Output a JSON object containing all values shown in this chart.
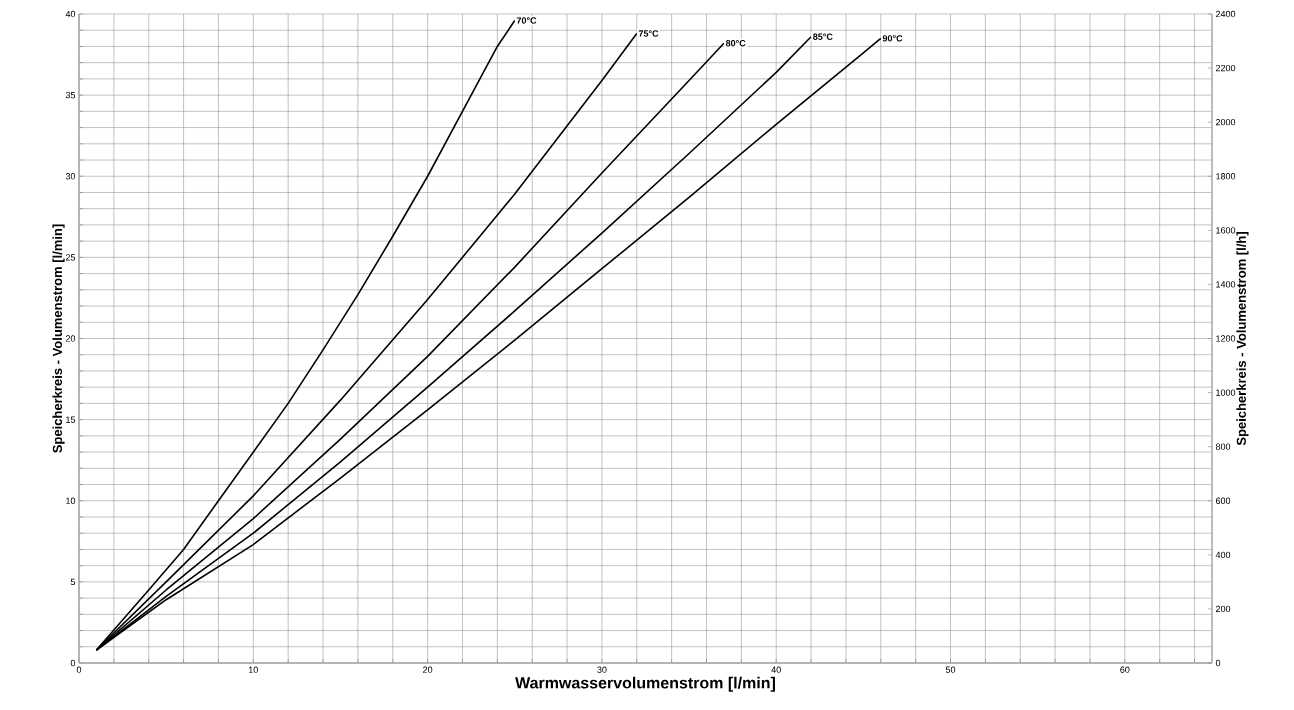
{
  "chart_data": {
    "type": "line",
    "xlabel": "Warmwasservolumenstrom [l/min]",
    "ylabel": "Speicherkreis - Volumenstrom [l/min]",
    "y2label": "Speicherkreis - Volumenstrom [l/h]",
    "xlim": [
      0,
      65
    ],
    "ylim": [
      0,
      40
    ],
    "y2lim": [
      0,
      2400
    ],
    "grid": true,
    "marker": "none",
    "line_style": "solid",
    "xticks": [
      0,
      {
        "value": 2,
        "label": null
      },
      {
        "value": 4,
        "label": null
      },
      {
        "value": 6,
        "label": null
      },
      {
        "value": 8,
        "label": null
      },
      10,
      {
        "value": 12,
        "label": null
      },
      {
        "value": 14,
        "label": null
      },
      {
        "value": 16,
        "label": null
      },
      {
        "value": 18,
        "label": null
      },
      20,
      {
        "value": 22,
        "label": null
      },
      {
        "value": 24,
        "label": null
      },
      {
        "value": 26,
        "label": null
      },
      {
        "value": 28,
        "label": null
      },
      30,
      {
        "value": 32,
        "label": null
      },
      {
        "value": 34,
        "label": null
      },
      {
        "value": 36,
        "label": null
      },
      {
        "value": 38,
        "label": null
      },
      40,
      {
        "value": 42,
        "label": null
      },
      {
        "value": 44,
        "label": null
      },
      {
        "value": 46,
        "label": null
      },
      {
        "value": 48,
        "label": null
      },
      50,
      {
        "value": 52,
        "label": null
      },
      {
        "value": 54,
        "label": null
      },
      {
        "value": 56,
        "label": null
      },
      {
        "value": 58,
        "label": null
      },
      60,
      {
        "value": 62,
        "label": null
      },
      {
        "value": 64,
        "label": null
      }
    ],
    "yticks": [
      0,
      {
        "value": 1,
        "label": null
      },
      {
        "value": 2,
        "label": null
      },
      {
        "value": 3,
        "label": null
      },
      {
        "value": 4,
        "label": null
      },
      5,
      {
        "value": 6,
        "label": null
      },
      {
        "value": 7,
        "label": null
      },
      {
        "value": 8,
        "label": null
      },
      {
        "value": 9,
        "label": null
      },
      10,
      {
        "value": 11,
        "label": null
      },
      {
        "value": 12,
        "label": null
      },
      {
        "value": 13,
        "label": null
      },
      {
        "value": 14,
        "label": null
      },
      15,
      {
        "value": 16,
        "label": null
      },
      {
        "value": 17,
        "label": null
      },
      {
        "value": 18,
        "label": null
      },
      {
        "value": 19,
        "label": null
      },
      20,
      {
        "value": 21,
        "label": null
      },
      {
        "value": 22,
        "label": null
      },
      {
        "value": 23,
        "label": null
      },
      {
        "value": 24,
        "label": null
      },
      25,
      {
        "value": 26,
        "label": null
      },
      {
        "value": 27,
        "label": null
      },
      {
        "value": 28,
        "label": null
      },
      {
        "value": 29,
        "label": null
      },
      30,
      {
        "value": 31,
        "label": null
      },
      {
        "value": 32,
        "label": null
      },
      {
        "value": 33,
        "label": null
      },
      {
        "value": 34,
        "label": null
      },
      35,
      {
        "value": 36,
        "label": null
      },
      {
        "value": 37,
        "label": null
      },
      {
        "value": 38,
        "label": null
      },
      {
        "value": 39,
        "label": null
      },
      40
    ],
    "y2ticks": [
      0,
      200,
      400,
      600,
      800,
      1000,
      1200,
      1400,
      1600,
      1800,
      2000,
      2200,
      2400
    ],
    "series": [
      {
        "name": "70°C",
        "color": "#000000",
        "x": [
          1,
          4,
          6,
          8,
          10,
          12,
          14,
          16,
          18,
          20,
          22,
          24,
          25
        ],
        "values": [
          0.8,
          4.5,
          7,
          10,
          13,
          16,
          19.3,
          22.7,
          26.3,
          30,
          34,
          38,
          39.6
        ]
      },
      {
        "name": "75°C",
        "color": "#000000",
        "x": [
          1,
          5,
          10,
          15,
          20,
          25,
          30,
          32
        ],
        "values": [
          0.8,
          5,
          10.3,
          16.2,
          22.4,
          28.9,
          35.9,
          38.8
        ]
      },
      {
        "name": "80°C",
        "color": "#000000",
        "x": [
          1,
          5,
          10,
          15,
          20,
          25,
          30,
          35,
          37
        ],
        "values": [
          0.8,
          4.5,
          8.9,
          13.8,
          18.9,
          24.4,
          30.2,
          35.9,
          38.2
        ]
      },
      {
        "name": "85°C",
        "color": "#000000",
        "x": [
          1,
          5,
          10,
          15,
          20,
          25,
          30,
          35,
          40,
          42
        ],
        "values": [
          0.8,
          4.1,
          8,
          12.4,
          17,
          21.7,
          26.5,
          31.4,
          36.4,
          38.6
        ]
      },
      {
        "name": "90°C",
        "color": "#000000",
        "x": [
          1,
          5,
          10,
          15,
          20,
          25,
          30,
          35,
          40,
          45,
          46
        ],
        "values": [
          0.8,
          3.9,
          7.3,
          11.4,
          15.6,
          19.9,
          24.3,
          28.7,
          33.2,
          37.6,
          38.5
        ]
      }
    ]
  }
}
